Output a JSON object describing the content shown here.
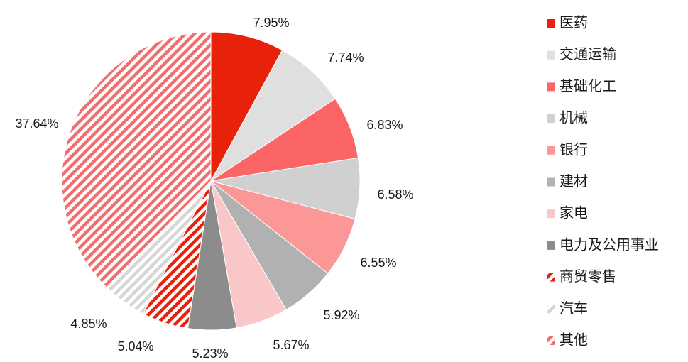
{
  "chart_data": {
    "type": "pie",
    "title": "",
    "legend_position": "right",
    "slices": [
      {
        "label": "医药",
        "value": 7.95,
        "value_label": "7.95%",
        "color": "#e8210b",
        "fill": "solid"
      },
      {
        "label": "交通运输",
        "value": 7.74,
        "value_label": "7.74%",
        "color": "#e0dfdf",
        "fill": "solid"
      },
      {
        "label": "基础化工",
        "value": 6.83,
        "value_label": "6.83%",
        "color": "#fb6566",
        "fill": "solid"
      },
      {
        "label": "机械",
        "value": 6.58,
        "value_label": "6.58%",
        "color": "#d1d0d0",
        "fill": "solid"
      },
      {
        "label": "银行",
        "value": 6.55,
        "value_label": "6.55%",
        "color": "#fb9796",
        "fill": "solid"
      },
      {
        "label": "建材",
        "value": 5.92,
        "value_label": "5.92%",
        "color": "#b2b1b1",
        "fill": "solid"
      },
      {
        "label": "家电",
        "value": 5.67,
        "value_label": "5.67%",
        "color": "#f9c7c8",
        "fill": "solid"
      },
      {
        "label": "电力及公用事业",
        "value": 5.23,
        "value_label": "5.23%",
        "color": "#8d8c8c",
        "fill": "solid"
      },
      {
        "label": "商贸零售",
        "value": 5.04,
        "value_label": "5.04%",
        "color": "#e8210b",
        "fill": "hatch"
      },
      {
        "label": "汽车",
        "value": 4.85,
        "value_label": "4.85%",
        "color": "#d6d6d6",
        "fill": "hatch"
      },
      {
        "label": "其他",
        "value": 37.64,
        "value_label": "37.64%",
        "color": "#f26d6d",
        "fill": "hatch"
      }
    ]
  }
}
